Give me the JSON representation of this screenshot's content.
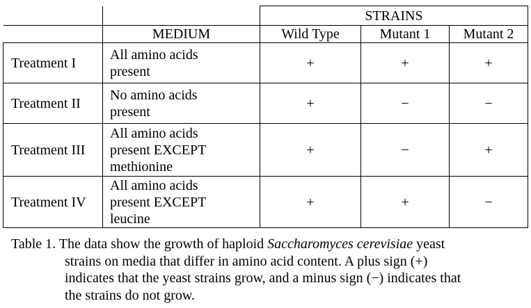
{
  "table": {
    "group_header": "STRAINS",
    "medium_header": "MEDIUM",
    "strain_headers": [
      "Wild Type",
      "Mutant 1",
      "Mutant 2"
    ],
    "rows": [
      {
        "treatment": "Treatment I",
        "medium_lines": [
          "All amino acids",
          "present"
        ],
        "results": [
          "+",
          "+",
          "+"
        ]
      },
      {
        "treatment": "Treatment II",
        "medium_lines": [
          "No amino acids",
          "present"
        ],
        "results": [
          "+",
          "−",
          "−"
        ]
      },
      {
        "treatment": "Treatment III",
        "medium_lines": [
          "All amino acids",
          "present EXCEPT",
          "methionine"
        ],
        "results": [
          "+",
          "−",
          "+"
        ]
      },
      {
        "treatment": "Treatment IV",
        "medium_lines": [
          "All amino acids",
          "present EXCEPT",
          "leucine"
        ],
        "results": [
          "+",
          "+",
          "−"
        ]
      }
    ]
  },
  "caption": {
    "line1_pre": "Table 1. The data show the growth of haploid ",
    "line1_italic": "Saccharomyces cerevisiae",
    "line1_post": " yeast",
    "line2": "strains on media that differ in amino acid content. A plus sign (+)",
    "line3": "indicates that the yeast strains grow, and a minus sign (−) indicates that",
    "line4": "the strains do not grow."
  }
}
